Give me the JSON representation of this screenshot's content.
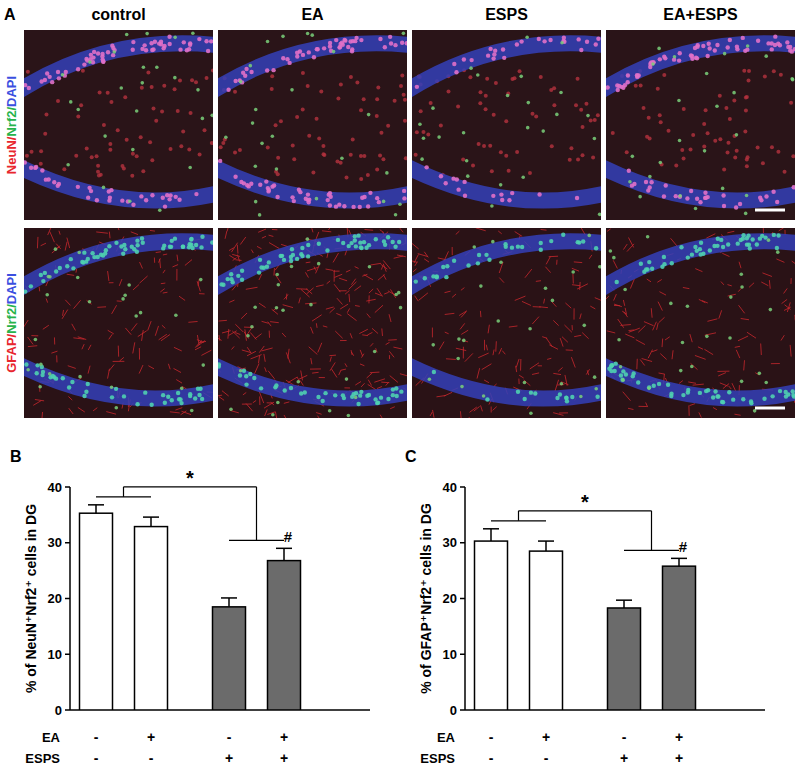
{
  "figure": {
    "panel_label": "A",
    "columns": [
      "control",
      "EA",
      "ESPS",
      "EA+ESPS"
    ],
    "rows": [
      [
        {
          "text": "NeuN/",
          "color": "#e8262e"
        },
        {
          "text": "Nrf2/",
          "color": "#27b34b"
        },
        {
          "text": "DAPI",
          "color": "#3b4fe0"
        }
      ],
      [
        {
          "text": "GFAP/",
          "color": "#e8262e"
        },
        {
          "text": "Nrf2/",
          "color": "#27b34b"
        },
        {
          "text": "DAPI",
          "color": "#3b4fe0"
        }
      ]
    ]
  },
  "chart_data": [
    {
      "type": "bar",
      "panel": "B",
      "y_label": "% of NeuN⁺Nrf2⁺ cells in DG",
      "categories": [
        null,
        null,
        null,
        null
      ],
      "values": [
        35.3,
        32.9,
        18.5,
        26.8
      ],
      "errors": [
        1.5,
        1.7,
        1.6,
        2.2
      ],
      "colors": [
        "#ffffff",
        "#ffffff",
        "#6b6b6b",
        "#6b6b6b"
      ],
      "ylim": [
        0,
        40
      ],
      "yticks": [
        0,
        10,
        20,
        30,
        40
      ],
      "grid": false,
      "factors": [
        {
          "name": "EA",
          "levels": [
            "-",
            "+",
            "-",
            "+"
          ]
        },
        {
          "name": "ESPS",
          "levels": [
            "-",
            "-",
            "+",
            "+"
          ]
        }
      ],
      "annotations": [
        {
          "text": "*",
          "groups": [
            [
              0,
              1
            ],
            [
              2,
              3
            ]
          ]
        },
        {
          "text": "#",
          "bar": 3
        }
      ]
    },
    {
      "type": "bar",
      "panel": "C",
      "y_label": "% of GFAP⁺Nrf2⁺ cells in DG",
      "categories": [
        null,
        null,
        null,
        null
      ],
      "values": [
        30.3,
        28.5,
        18.3,
        25.8
      ],
      "errors": [
        2.2,
        1.8,
        1.4,
        1.4
      ],
      "colors": [
        "#ffffff",
        "#ffffff",
        "#6b6b6b",
        "#6b6b6b"
      ],
      "ylim": [
        0,
        40
      ],
      "yticks": [
        0,
        10,
        20,
        30,
        40
      ],
      "grid": false,
      "factors": [
        {
          "name": "EA",
          "levels": [
            "-",
            "+",
            "-",
            "+"
          ]
        },
        {
          "name": "ESPS",
          "levels": [
            "-",
            "-",
            "+",
            "+"
          ]
        }
      ],
      "annotations": [
        {
          "text": "*",
          "groups": [
            [
              0,
              1
            ],
            [
              2,
              3
            ]
          ]
        },
        {
          "text": "#",
          "bar": 3
        }
      ]
    }
  ]
}
